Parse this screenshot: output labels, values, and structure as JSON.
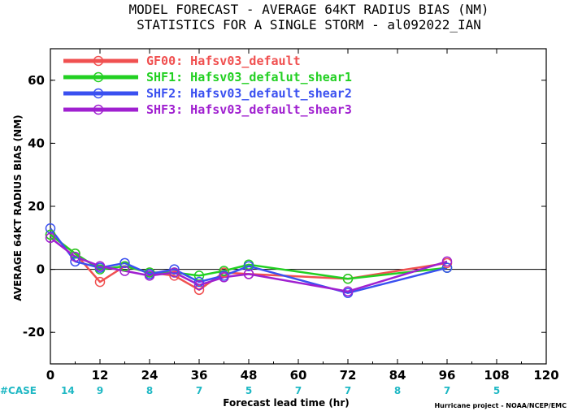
{
  "chart_data": {
    "type": "line",
    "title": "MODEL FORECAST - AVERAGE 64KT RADIUS BIAS (NM)",
    "subtitle": "STATISTICS FOR A SINGLE STORM - al092022_IAN",
    "xlabel": "Forecast lead time (hr)",
    "ylabel": "AVERAGE 64KT RADIUS BIAS (NM)",
    "xlim": [
      0,
      120
    ],
    "ylim": [
      -30,
      70
    ],
    "xticks": [
      "0",
      "12",
      "24",
      "36",
      "48",
      "60",
      "72",
      "84",
      "96",
      "108",
      "120"
    ],
    "yticks": [
      "-20",
      "0",
      "20",
      "40",
      "60"
    ],
    "zero_line": true,
    "legend_position": "top-left",
    "x": [
      0,
      6,
      12,
      18,
      24,
      30,
      36,
      42,
      48,
      72,
      96
    ],
    "series": [
      {
        "name": "GF00: Hafsv03_default",
        "color": "#f05050",
        "values": [
          11,
          5,
          -4,
          1,
          -1,
          -2,
          -6.5,
          -1,
          -1.5,
          -3,
          2
        ]
      },
      {
        "name": "SHF1: Hafsv03_defalut_shear1",
        "color": "#22d022",
        "values": [
          11,
          5,
          0,
          1,
          -1,
          -1,
          -2,
          -0.5,
          1.5,
          -3,
          0.5
        ]
      },
      {
        "name": "SHF2: Hafsv03_default_shear2",
        "color": "#3a50f0",
        "values": [
          13,
          2.5,
          0.5,
          2,
          -1.5,
          0,
          -4,
          -2,
          1,
          -7.5,
          0.5
        ]
      },
      {
        "name": "SHF3: Hafsv03_default_shear3",
        "color": "#a020d0",
        "values": [
          10,
          4,
          1,
          -0.5,
          -2,
          -1,
          -5,
          -2.5,
          -1.5,
          -7,
          2.5
        ]
      }
    ],
    "case_counts": {
      "label": "#CASE",
      "x": [
        0,
        12,
        24,
        36,
        48,
        60,
        72,
        84,
        96,
        108
      ],
      "values": [
        "14",
        "9",
        "8",
        "7",
        "5",
        "7",
        "7",
        "8",
        "7",
        "5"
      ]
    },
    "credit": "Hurricane project - NOAA/NCEP/EMC"
  }
}
